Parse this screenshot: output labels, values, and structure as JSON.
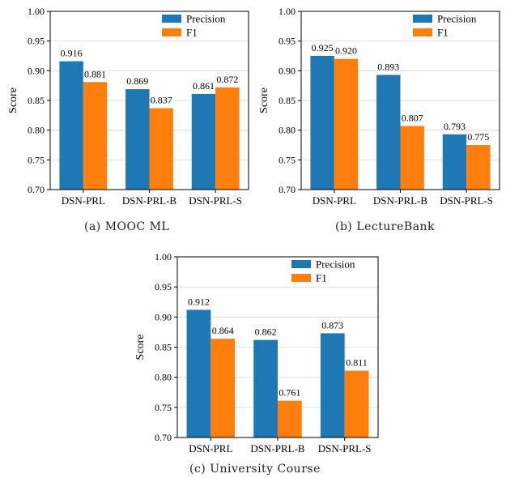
{
  "colors": {
    "precision": "#1f77b4",
    "f1": "#ff7f0e",
    "grid": "#d9d9d9"
  },
  "chart_data": [
    {
      "type": "bar",
      "categories": [
        "DSN-PRL",
        "DSN-PRL-B",
        "DSN-PRL-S"
      ],
      "series": [
        {
          "name": "Precision",
          "values": [
            0.916,
            0.869,
            0.861
          ],
          "labels": [
            "0.916",
            "0.869",
            "0.861"
          ]
        },
        {
          "name": "F1",
          "values": [
            0.881,
            0.837,
            0.872
          ],
          "labels": [
            "0.881",
            "0.837",
            "0.872"
          ]
        }
      ],
      "ylabel": "Score",
      "ylim": [
        0.7,
        1.0
      ],
      "yticks": [
        "0.70",
        "0.75",
        "0.80",
        "0.85",
        "0.90",
        "0.95",
        "1.00"
      ],
      "grid": true,
      "legend": "top-right",
      "caption": "(a) MOOC ML"
    },
    {
      "type": "bar",
      "categories": [
        "DSN-PRL",
        "DSN-PRL-B",
        "DSN-PRL-S"
      ],
      "series": [
        {
          "name": "Precision",
          "values": [
            0.925,
            0.893,
            0.793
          ],
          "labels": [
            "0.925",
            "0.893",
            "0.793"
          ]
        },
        {
          "name": "F1",
          "values": [
            0.92,
            0.807,
            0.775
          ],
          "labels": [
            "0.920",
            "0.807",
            "0.775"
          ]
        }
      ],
      "ylabel": "Score",
      "ylim": [
        0.7,
        1.0
      ],
      "yticks": [
        "0.70",
        "0.75",
        "0.80",
        "0.85",
        "0.90",
        "0.95",
        "1.00"
      ],
      "grid": true,
      "legend": "top-right",
      "caption": "(b) LectureBank"
    },
    {
      "type": "bar",
      "categories": [
        "DSN-PRL",
        "DSN-PRL-B",
        "DSN-PRL-S"
      ],
      "series": [
        {
          "name": "Precision",
          "values": [
            0.912,
            0.862,
            0.873
          ],
          "labels": [
            "0.912",
            "0.862",
            "0.873"
          ]
        },
        {
          "name": "F1",
          "values": [
            0.864,
            0.761,
            0.811
          ],
          "labels": [
            "0.864",
            "0.761",
            "0.811"
          ]
        }
      ],
      "ylabel": "Score",
      "ylim": [
        0.7,
        1.0
      ],
      "yticks": [
        "0.70",
        "0.75",
        "0.80",
        "0.85",
        "0.90",
        "0.95",
        "1.00"
      ],
      "grid": true,
      "legend": "top-right",
      "caption": "(c) University Course"
    }
  ]
}
